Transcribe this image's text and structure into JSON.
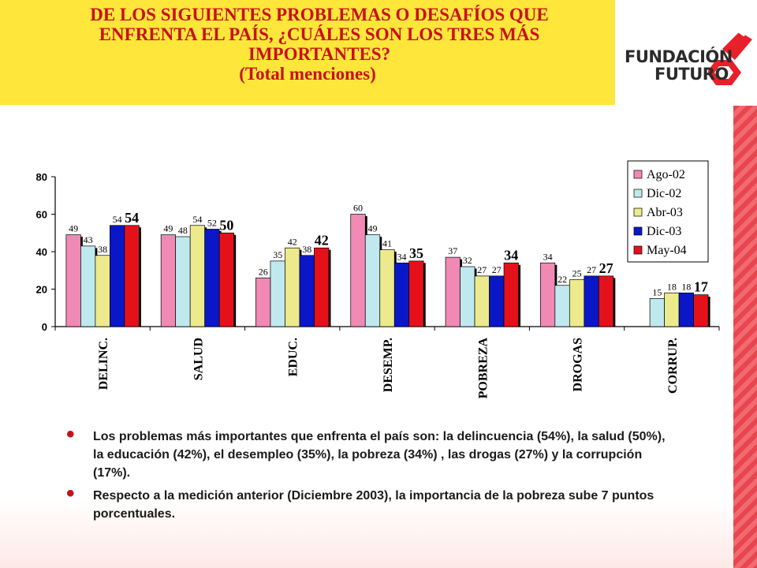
{
  "title": {
    "main": "DE LOS SIGUIENTES PROBLEMAS O DESAFÍOS QUE ENFRENTA EL PAÍS, ¿CUÁLES SON LOS TRES MÁS IMPORTANTES?",
    "sub": "(Total menciones)"
  },
  "logo": {
    "line1": "FUNDACIÓN",
    "line2": "FUTURO",
    "accent": "#e8202a"
  },
  "chart_data": {
    "type": "bar",
    "categories": [
      "DELINC.",
      "SALUD",
      "EDUC.",
      "DESEMP.",
      "POBREZA",
      "DROGAS",
      "CORRUP."
    ],
    "series": [
      {
        "name": "Ago-02",
        "color": "#f08ab4",
        "values": [
          49,
          49,
          26,
          60,
          37,
          34,
          null
        ]
      },
      {
        "name": "Dic-02",
        "color": "#bfe9ee",
        "values": [
          43,
          48,
          35,
          49,
          32,
          22,
          15
        ]
      },
      {
        "name": "Abr-03",
        "color": "#ecea8c",
        "values": [
          38,
          54,
          42,
          41,
          27,
          25,
          18
        ]
      },
      {
        "name": "Dic-03",
        "color": "#0a17c8",
        "values": [
          54,
          52,
          38,
          34,
          27,
          27,
          18
        ]
      },
      {
        "name": "May-04",
        "color": "#e4111b",
        "values": [
          54,
          50,
          42,
          35,
          34,
          27,
          17
        ]
      }
    ],
    "ylim": [
      0,
      80
    ],
    "yticks": [
      0,
      20,
      40,
      60,
      80
    ],
    "grid": false,
    "legend": "top-right"
  },
  "bullets": [
    "Los problemas más importantes que enfrenta el país son: la delincuencia (54%), la salud (50%), la educación (42%), el desempleo (35%), la pobreza (34%) , las drogas (27%) y la corrupción (17%).",
    "Respecto a la medición anterior (Diciembre 2003), la importancia de la pobreza sube 7 puntos porcentuales."
  ]
}
